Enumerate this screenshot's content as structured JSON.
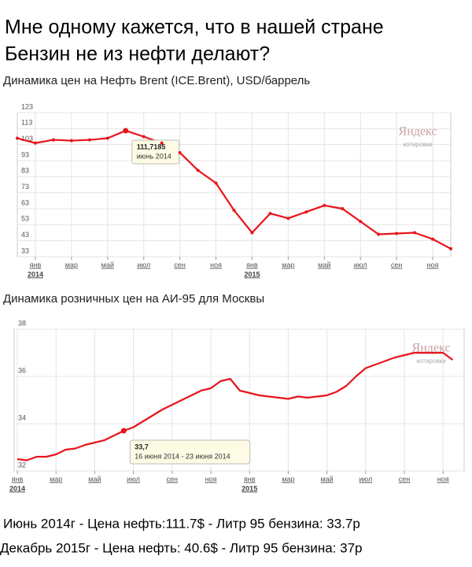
{
  "header": {
    "lines": [
      "Мне одному кажется, что в нашей стране",
      "Бензин не из нефти делают?"
    ]
  },
  "chart_data": [
    {
      "type": "line",
      "title": "Динамика цен на Нефть Brent (ICE.Brent), USD/баррель",
      "categories": [
        null,
        "янв",
        null,
        "мар",
        null,
        "май",
        null,
        "июл",
        null,
        "сен",
        null,
        "ноя",
        null,
        "янв",
        null,
        "мар",
        null,
        "май",
        null,
        "июл",
        null,
        "сен",
        null,
        "ноя",
        null
      ],
      "year_labels": [
        "2014",
        "2015"
      ],
      "values": [
        107,
        104,
        106,
        105.5,
        106,
        107,
        111.7185,
        108,
        104,
        98,
        87,
        79,
        62,
        48,
        60,
        57,
        61,
        65,
        63,
        55,
        47,
        47.5,
        48,
        44,
        38
      ],
      "value_labels": [
        null,
        null,
        null,
        null,
        null,
        null,
        "111,7185",
        null,
        null,
        null,
        null,
        null,
        null,
        null,
        null,
        null,
        null,
        null,
        null,
        null,
        null,
        null,
        null,
        null,
        null
      ],
      "tooltip_dates": [
        null,
        null,
        null,
        null,
        null,
        null,
        "июнь 2014",
        null,
        null,
        null,
        null,
        null,
        null,
        null,
        null,
        null,
        null,
        null,
        null,
        null,
        null,
        null,
        null,
        null,
        null
      ],
      "color": "#e8141b",
      "markers": true,
      "ylim": [
        33,
        123
      ],
      "yticks": [
        33,
        43,
        53,
        63,
        73,
        83,
        93,
        103,
        113,
        123
      ],
      "grid": true,
      "watermark": [
        "Яндекс",
        "котировки"
      ]
    },
    {
      "type": "line",
      "title": "Динамика розничных цен на АИ-95 для Москвы",
      "categories": [
        "янв",
        null,
        null,
        null,
        "мар",
        null,
        null,
        null,
        "май",
        null,
        null,
        null,
        "июл",
        null,
        null,
        null,
        "сен",
        null,
        null,
        null,
        "ноя",
        null,
        null,
        null,
        "янв",
        null,
        null,
        null,
        "мар",
        null,
        null,
        null,
        "май",
        null,
        null,
        null,
        "июл",
        null,
        null,
        null,
        "сен",
        null,
        null,
        null,
        "ноя",
        null
      ],
      "year_labels": [
        "2014",
        "2015"
      ],
      "values": [
        32.5,
        32.45,
        32.6,
        32.6,
        32.7,
        32.9,
        32.95,
        33.1,
        33.2,
        33.3,
        33.5,
        33.7,
        33.85,
        34.1,
        34.35,
        34.6,
        34.8,
        35.0,
        35.2,
        35.4,
        35.5,
        35.8,
        35.9,
        35.4,
        35.3,
        35.2,
        35.15,
        35.1,
        35.05,
        35.15,
        35.1,
        35.15,
        35.2,
        35.35,
        35.6,
        36.0,
        36.35,
        36.5,
        36.65,
        36.8,
        36.9,
        37.0,
        37.0,
        37.0,
        37.0,
        36.7
      ],
      "value_labels": [
        null,
        null,
        null,
        null,
        null,
        null,
        null,
        null,
        null,
        null,
        null,
        "33,7",
        null,
        null,
        null,
        null,
        null,
        null,
        null,
        null,
        null,
        null,
        null,
        null,
        null,
        null,
        null,
        null,
        null,
        null,
        null,
        null,
        null,
        null,
        null,
        null,
        null,
        null,
        null,
        null,
        null,
        null,
        null,
        null,
        null,
        null
      ],
      "tooltip_dates": [
        null,
        null,
        null,
        null,
        null,
        null,
        null,
        null,
        null,
        null,
        null,
        "16 июня 2014 - 23 июня 2014",
        null,
        null,
        null,
        null,
        null,
        null,
        null,
        null,
        null,
        null,
        null,
        null,
        null,
        null,
        null,
        null,
        null,
        null,
        null,
        null,
        null,
        null,
        null,
        null,
        null,
        null,
        null,
        null,
        null,
        null,
        null,
        null,
        null,
        null
      ],
      "color": "#e8141b",
      "markers": false,
      "ylim": [
        32,
        38
      ],
      "yticks": [
        32,
        34,
        36,
        38
      ],
      "grid": true,
      "watermark": [
        "Яндекс",
        "котировки"
      ]
    }
  ],
  "footer": {
    "lines": [
      "Июнь 2014г - Цена нефть:111.7$ - Литр 95 бензина: 33.7р",
      "Декабрь 2015г - Цена нефть: 40.6$ - Литр 95 бензина: 37р"
    ]
  }
}
